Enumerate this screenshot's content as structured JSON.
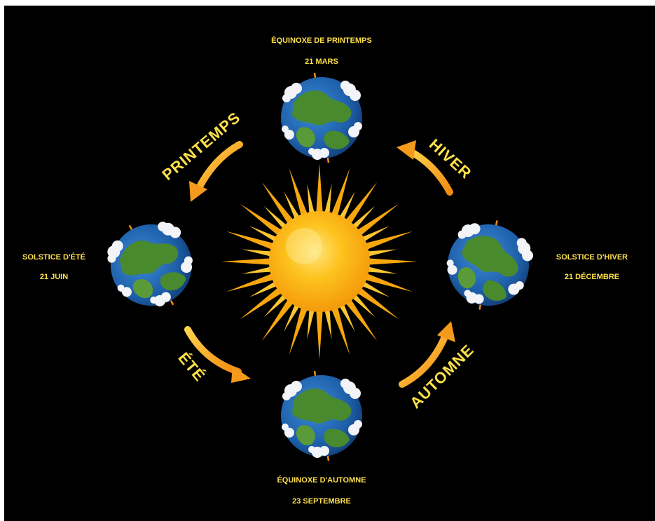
{
  "colors": {
    "background": "#000000",
    "label": "#ffe14a",
    "arrow": "#f59a1c",
    "sun_core": "#fdb812",
    "sun_rays": "#f7a70d",
    "ocean": "#1d5ea8",
    "land": "#4a8a2e"
  },
  "positions": {
    "spring_equinox": {
      "name": "ÉQUINOXE DE PRINTEMPS",
      "date": "21 MARS"
    },
    "summer_solstice": {
      "name": "SOLSTICE D'ÉTÉ",
      "date": "21 JUIN"
    },
    "autumn_equinox": {
      "name": "ÉQUINOXE D'AUTOMNE",
      "date": "23 SEPTEMBRE"
    },
    "winter_solstice": {
      "name": "SOLSTICE D'HIVER",
      "date": "21 DÉCEMBRE"
    }
  },
  "seasons": {
    "spring": "PRINTEMPS",
    "summer": "ÉTÉ",
    "autumn": "AUTOMNE",
    "winter": "HIVER"
  },
  "icons": [
    "sun-icon",
    "earth-icon",
    "arrow-icon"
  ]
}
